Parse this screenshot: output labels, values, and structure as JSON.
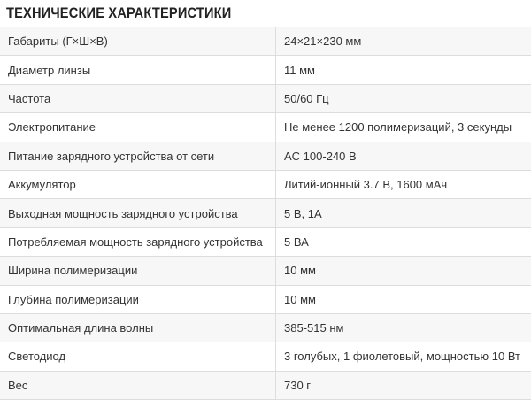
{
  "header": {
    "title": "ТЕХНИЧЕСКИЕ ХАРАКТЕРИСТИКИ"
  },
  "table": {
    "rows": [
      [
        "Габариты (Г×Ш×В)",
        "24×21×230 мм"
      ],
      [
        "Диаметр линзы",
        "11 мм"
      ],
      [
        "Частота",
        "50/60 Гц"
      ],
      [
        "Электропитание",
        "Не менее 1200 полимеризаций, 3 секунды"
      ],
      [
        "Питание зарядного устройства от сети",
        "AC 100-240 В"
      ],
      [
        "Аккумулятор",
        "Литий-ионный 3.7 В, 1600 мАч"
      ],
      [
        "Выходная мощность зарядного устройства",
        "5 В, 1А"
      ],
      [
        "Потребляемая мощность зарядного устройства",
        "5 ВА"
      ],
      [
        "Ширина полимеризации",
        "10 мм"
      ],
      [
        "Глубина полимеризации",
        "10 мм"
      ],
      [
        "Оптимальная длина волны",
        "385-515 нм"
      ],
      [
        "Светодиод",
        "3 голубых, 1 фиолетовый, мощностью 10 Вт"
      ],
      [
        "Вес",
        "730 г"
      ]
    ]
  }
}
